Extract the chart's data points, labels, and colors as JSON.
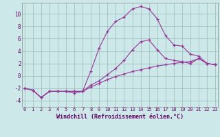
{
  "xlabel": "Windchill (Refroidissement éolien,°C)",
  "background_color": "#cce8e8",
  "line_color": "#993399",
  "xlim": [
    -0.3,
    23.3
  ],
  "ylim": [
    -5.0,
    11.8
  ],
  "yticks": [
    -4,
    -2,
    0,
    2,
    4,
    6,
    8,
    10
  ],
  "xticks": [
    0,
    1,
    2,
    3,
    4,
    5,
    6,
    7,
    8,
    9,
    10,
    11,
    12,
    13,
    14,
    15,
    16,
    17,
    18,
    19,
    20,
    21,
    22,
    23
  ],
  "series": [
    {
      "x": [
        0,
        1,
        2,
        3,
        4,
        5,
        6,
        7,
        8,
        9,
        10,
        11,
        12,
        13,
        14,
        15,
        16,
        17,
        18,
        19,
        20,
        21,
        22,
        23
      ],
      "y": [
        -2.0,
        -2.3,
        -3.5,
        -2.5,
        -2.5,
        -2.5,
        -2.5,
        -2.5,
        -1.8,
        -1.2,
        -0.6,
        -0.1,
        0.3,
        0.7,
        1.0,
        1.3,
        1.6,
        1.8,
        2.0,
        2.2,
        2.3,
        2.8,
        2.0,
        1.8
      ]
    },
    {
      "x": [
        0,
        1,
        2,
        3,
        4,
        5,
        6,
        7,
        8,
        9,
        10,
        11,
        12,
        13,
        14,
        15,
        16,
        17,
        18,
        19,
        20,
        21,
        22,
        23
      ],
      "y": [
        -2.0,
        -2.3,
        -3.5,
        -2.5,
        -2.5,
        -2.5,
        -2.5,
        -2.5,
        -1.5,
        -0.8,
        0.2,
        1.2,
        2.5,
        4.2,
        5.5,
        5.8,
        4.2,
        2.8,
        2.5,
        2.3,
        2.0,
        2.8,
        2.0,
        1.8
      ]
    },
    {
      "x": [
        0,
        1,
        2,
        3,
        4,
        5,
        6,
        7,
        8,
        9,
        10,
        11,
        12,
        13,
        14,
        15,
        16,
        17,
        18,
        19,
        20,
        21,
        22,
        23
      ],
      "y": [
        -2.0,
        -2.3,
        -3.5,
        -2.5,
        -2.5,
        -2.5,
        -2.8,
        -2.5,
        0.8,
        4.5,
        7.2,
        8.8,
        9.5,
        10.8,
        11.2,
        10.8,
        9.2,
        6.5,
        5.0,
        4.8,
        3.5,
        3.2,
        2.0,
        1.8
      ]
    }
  ]
}
